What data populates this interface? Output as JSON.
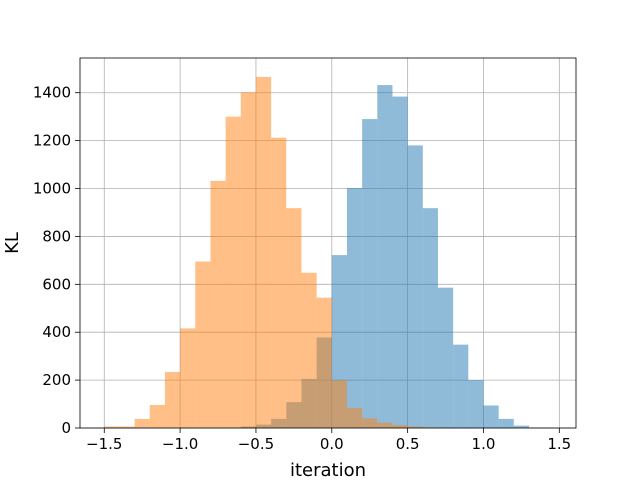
{
  "chart_data": {
    "type": "histogram",
    "title": "",
    "xlabel": "iteration",
    "ylabel": "KL",
    "xlim": [
      -1.66,
      1.61
    ],
    "ylim": [
      0,
      1545
    ],
    "grid": true,
    "xticks": [
      -1.5,
      -1.0,
      -0.5,
      0.0,
      0.5,
      1.0,
      1.5
    ],
    "xtick_labels": [
      "−1.5",
      "−1.0",
      "−0.5",
      "0.0",
      "0.5",
      "1.0",
      "1.5"
    ],
    "yticks": [
      0,
      200,
      400,
      600,
      800,
      1000,
      1200,
      1400
    ],
    "ytick_labels": [
      "0",
      "200",
      "400",
      "600",
      "800",
      "1000",
      "1200",
      "1400"
    ],
    "series": [
      {
        "color": "#1f77b4",
        "alpha": 0.5,
        "bin_edges": [
          -0.7,
          -0.6,
          -0.5,
          -0.4,
          -0.3,
          -0.2,
          -0.1,
          0.0,
          0.1,
          0.2,
          0.3,
          0.4,
          0.5,
          0.6,
          0.7,
          0.8,
          0.9,
          1.0,
          1.1,
          1.2,
          1.3,
          1.45
        ],
        "values": [
          2,
          6,
          14,
          38,
          108,
          205,
          378,
          722,
          1002,
          1290,
          1432,
          1384,
          1180,
          918,
          586,
          348,
          200,
          94,
          38,
          10,
          2
        ]
      },
      {
        "color": "#ff7f0e",
        "alpha": 0.5,
        "bin_edges": [
          -1.5,
          -1.3,
          -1.2,
          -1.1,
          -1.0,
          -0.9,
          -0.8,
          -0.7,
          -0.6,
          -0.5,
          -0.4,
          -0.3,
          -0.2,
          -0.1,
          0.0,
          0.1,
          0.2,
          0.3,
          0.4,
          0.5,
          0.6,
          0.7,
          0.8
        ],
        "values": [
          6,
          38,
          96,
          234,
          416,
          695,
          1032,
          1300,
          1402,
          1466,
          1212,
          918,
          648,
          544,
          200,
          84,
          40,
          22,
          12,
          6,
          2,
          1
        ]
      }
    ]
  }
}
